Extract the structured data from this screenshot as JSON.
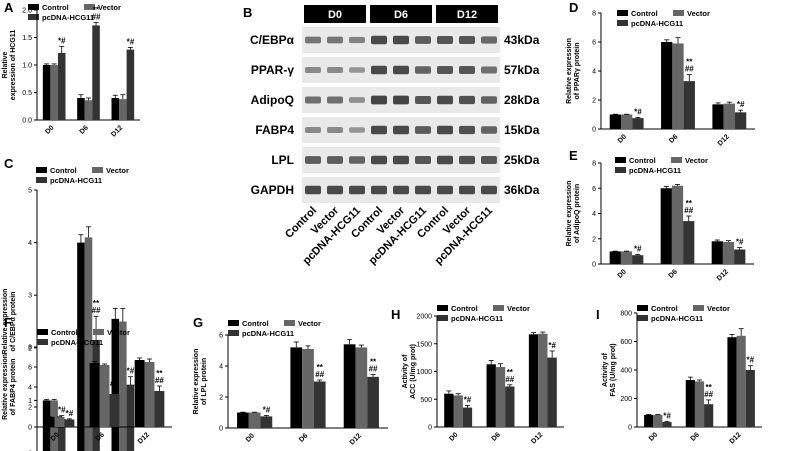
{
  "colors": {
    "control": "#000000",
    "vector": "#666666",
    "pcdna": "#333333",
    "axis": "#000000",
    "blot_bg": "#e9e9e9",
    "band": "#333333",
    "header": "#000000"
  },
  "series_names": [
    "Control",
    "Vector",
    "pcDNA-HCG11"
  ],
  "western_blot": {
    "letter": "B",
    "timepoints": [
      "D0",
      "D6",
      "D12"
    ],
    "proteins": [
      {
        "name": "C/EBPα",
        "size": "43kDa",
        "intensity": [
          0.55,
          0.55,
          0.45,
          0.9,
          0.9,
          0.75,
          0.8,
          0.8,
          0.65
        ]
      },
      {
        "name": "PPAR-γ",
        "size": "57kDa",
        "intensity": [
          0.4,
          0.4,
          0.3,
          0.9,
          0.9,
          0.7,
          0.8,
          0.8,
          0.6
        ]
      },
      {
        "name": "AdipoQ",
        "size": "28kDa",
        "intensity": [
          0.6,
          0.6,
          0.35,
          0.95,
          0.95,
          0.8,
          0.9,
          0.85,
          0.7
        ]
      },
      {
        "name": "FABP4",
        "size": "15kDa",
        "intensity": [
          0.4,
          0.4,
          0.3,
          0.9,
          0.9,
          0.75,
          0.9,
          0.85,
          0.7
        ]
      },
      {
        "name": "LPL",
        "size": "25kDa",
        "intensity": [
          0.75,
          0.75,
          0.7,
          0.9,
          0.9,
          0.8,
          0.9,
          0.85,
          0.8
        ]
      },
      {
        "name": "GAPDH",
        "size": "36kDa",
        "intensity": [
          0.9,
          0.9,
          0.9,
          0.9,
          0.9,
          0.9,
          0.9,
          0.9,
          0.9
        ]
      }
    ],
    "lane_labels": [
      "Control",
      "Vector",
      "pcDNA-HCG11",
      "Control",
      "Vector",
      "pcDNA-HCG11",
      "Control",
      "Vector",
      "pcDNA-HCG11"
    ]
  },
  "chart_data": [
    {
      "id": "A",
      "type": "bar",
      "letter": "A",
      "ylabel": "Relative expression of HCG11",
      "categories": [
        "D0",
        "D6",
        "D12"
      ],
      "ylim": [
        0,
        2.0
      ],
      "yticks": [
        0.0,
        0.5,
        1.0,
        1.5,
        2.0
      ],
      "tick_decimals": 1,
      "legend_cols": 2,
      "legend_placement": "top",
      "series": [
        {
          "name": "Control",
          "values": [
            1.0,
            0.4,
            0.4
          ],
          "errors": [
            0.02,
            0.06,
            0.05
          ]
        },
        {
          "name": "Vector",
          "values": [
            1.0,
            0.36,
            0.38
          ],
          "errors": [
            0.02,
            0.04,
            0.08
          ]
        },
        {
          "name": "pcDNA-HCG11",
          "values": [
            1.22,
            1.72,
            1.28
          ],
          "errors": [
            0.12,
            0.05,
            0.04
          ]
        }
      ],
      "annotations": [
        {
          "series": 2,
          "category": 0,
          "text": [
            "*#"
          ]
        },
        {
          "series": 2,
          "category": 1,
          "text": [
            "**",
            "##"
          ]
        },
        {
          "series": 2,
          "category": 2,
          "text": [
            "*#"
          ]
        }
      ]
    },
    {
      "id": "C",
      "type": "bar",
      "letter": "C",
      "ylabel": "Relative expression of C/EBPα protein",
      "categories": [
        "D0",
        "D6",
        "D12"
      ],
      "ylim": [
        0,
        5
      ],
      "yticks": [
        0,
        1,
        2,
        3,
        4,
        5
      ],
      "tick_decimals": 0,
      "legend_cols": 2,
      "legend_placement": "top",
      "series": [
        {
          "name": "Control",
          "values": [
            1.0,
            4.0,
            2.55
          ],
          "errors": [
            0.02,
            0.15,
            0.2
          ]
        },
        {
          "name": "Vector",
          "values": [
            1.0,
            4.1,
            2.5
          ],
          "errors": [
            0.02,
            0.2,
            0.25
          ]
        },
        {
          "name": "pcDNA-HCG11",
          "values": [
            0.65,
            2.15,
            1.3
          ],
          "errors": [
            0.06,
            0.45,
            0.15
          ]
        }
      ],
      "annotations": [
        {
          "series": 2,
          "category": 0,
          "text": [
            "*#"
          ]
        },
        {
          "series": 2,
          "category": 1,
          "text": [
            "**",
            "##"
          ]
        },
        {
          "series": 2,
          "category": 2,
          "text": [
            "*#"
          ]
        }
      ]
    },
    {
      "id": "D",
      "type": "bar",
      "letter": "D",
      "ylabel": "Relative expression of PPARγ protein",
      "categories": [
        "D0",
        "D6",
        "D12"
      ],
      "ylim": [
        0,
        8
      ],
      "yticks": [
        0,
        2,
        4,
        6,
        8
      ],
      "tick_decimals": 0,
      "legend_cols": 2,
      "legend_placement": "top",
      "series": [
        {
          "name": "Control",
          "values": [
            1.0,
            6.0,
            1.7
          ],
          "errors": [
            0.02,
            0.15,
            0.1
          ]
        },
        {
          "name": "Vector",
          "values": [
            1.0,
            5.9,
            1.75
          ],
          "errors": [
            0.02,
            0.4,
            0.1
          ]
        },
        {
          "name": "pcDNA-HCG11",
          "values": [
            0.75,
            3.3,
            1.15
          ],
          "errors": [
            0.05,
            0.45,
            0.15
          ]
        }
      ],
      "annotations": [
        {
          "series": 2,
          "category": 0,
          "text": [
            "*#"
          ]
        },
        {
          "series": 2,
          "category": 1,
          "text": [
            "**",
            "##"
          ]
        },
        {
          "series": 2,
          "category": 2,
          "text": [
            "*#"
          ]
        }
      ]
    },
    {
      "id": "E",
      "type": "bar",
      "letter": "E",
      "ylabel": "Relative expression of AdipoQ protein",
      "categories": [
        "D0",
        "D6",
        "D12"
      ],
      "ylim": [
        0,
        8
      ],
      "yticks": [
        0,
        2,
        4,
        6,
        8
      ],
      "tick_decimals": 0,
      "legend_cols": 2,
      "legend_placement": "top",
      "series": [
        {
          "name": "Control",
          "values": [
            1.0,
            6.0,
            1.8
          ],
          "errors": [
            0.02,
            0.15,
            0.1
          ]
        },
        {
          "name": "Vector",
          "values": [
            1.0,
            6.2,
            1.75
          ],
          "errors": [
            0.02,
            0.1,
            0.1
          ]
        },
        {
          "name": "pcDNA-HCG11",
          "values": [
            0.7,
            3.4,
            1.15
          ],
          "errors": [
            0.05,
            0.4,
            0.15
          ]
        }
      ],
      "annotations": [
        {
          "series": 2,
          "category": 0,
          "text": [
            "*#"
          ]
        },
        {
          "series": 2,
          "category": 1,
          "text": [
            "**",
            "##"
          ]
        },
        {
          "series": 2,
          "category": 2,
          "text": [
            "*#"
          ]
        }
      ]
    },
    {
      "id": "F",
      "type": "bar",
      "letter": "F",
      "ylabel": "Relative expression of FABP4 protein",
      "categories": [
        "D0",
        "D6",
        "D12"
      ],
      "ylim": [
        0,
        8
      ],
      "yticks": [
        0,
        2,
        4,
        6,
        8
      ],
      "tick_decimals": 0,
      "legend_cols": 2,
      "legend_placement": "top",
      "series": [
        {
          "name": "Control",
          "values": [
            1.0,
            6.4,
            6.7
          ],
          "errors": [
            0.02,
            0.15,
            0.2
          ]
        },
        {
          "name": "Vector",
          "values": [
            1.0,
            6.2,
            6.5
          ],
          "errors": [
            0.02,
            0.1,
            0.3
          ]
        },
        {
          "name": "pcDNA-HCG11",
          "values": [
            0.75,
            3.3,
            3.6
          ],
          "errors": [
            0.06,
            0.5,
            0.5
          ]
        }
      ],
      "annotations": [
        {
          "series": 2,
          "category": 0,
          "text": [
            "*#"
          ]
        },
        {
          "series": 2,
          "category": 1,
          "text": [
            "**",
            "##"
          ]
        },
        {
          "series": 2,
          "category": 2,
          "text": [
            "**",
            "##"
          ]
        }
      ]
    },
    {
      "id": "G",
      "type": "bar",
      "letter": "G",
      "ylabel": "Relative expression of LPL protein",
      "categories": [
        "D0",
        "D6",
        "D12"
      ],
      "ylim": [
        0,
        6
      ],
      "yticks": [
        0,
        2,
        4,
        6
      ],
      "tick_decimals": 0,
      "legend_cols": 2,
      "legend_placement": "top",
      "series": [
        {
          "name": "Control",
          "values": [
            1.0,
            5.2,
            5.4
          ],
          "errors": [
            0.02,
            0.35,
            0.3
          ]
        },
        {
          "name": "Vector",
          "values": [
            1.0,
            5.1,
            5.2
          ],
          "errors": [
            0.02,
            0.2,
            0.15
          ]
        },
        {
          "name": "pcDNA-HCG11",
          "values": [
            0.75,
            3.0,
            3.3
          ],
          "errors": [
            0.05,
            0.1,
            0.15
          ]
        }
      ],
      "annotations": [
        {
          "series": 2,
          "category": 0,
          "text": [
            "*#"
          ]
        },
        {
          "series": 2,
          "category": 1,
          "text": [
            "**",
            "##"
          ]
        },
        {
          "series": 2,
          "category": 2,
          "text": [
            "**",
            "##"
          ]
        }
      ]
    },
    {
      "id": "H",
      "type": "bar",
      "letter": "H",
      "ylabel": "Activity of ACC (U/mg prot)",
      "categories": [
        "D0",
        "D6",
        "D12"
      ],
      "ylim": [
        0,
        2000
      ],
      "yticks": [
        0,
        500,
        1000,
        1500,
        2000
      ],
      "tick_decimals": 0,
      "legend_cols": 2,
      "legend_placement": "top",
      "series": [
        {
          "name": "Control",
          "values": [
            600,
            1130,
            1670
          ],
          "errors": [
            50,
            70,
            30
          ]
        },
        {
          "name": "Vector",
          "values": [
            570,
            1080,
            1680
          ],
          "errors": [
            30,
            60,
            30
          ]
        },
        {
          "name": "pcDNA-HCG11",
          "values": [
            350,
            730,
            1250
          ],
          "errors": [
            40,
            30,
            120
          ]
        }
      ],
      "annotations": [
        {
          "series": 2,
          "category": 0,
          "text": [
            "*#"
          ]
        },
        {
          "series": 2,
          "category": 1,
          "text": [
            "**",
            "##"
          ]
        },
        {
          "series": 2,
          "category": 2,
          "text": [
            "*#"
          ]
        }
      ]
    },
    {
      "id": "I",
      "type": "bar",
      "letter": "I",
      "ylabel": "Activity of FAS (U/mg prot)",
      "categories": [
        "D0",
        "D6",
        "D12"
      ],
      "ylim": [
        0,
        800
      ],
      "yticks": [
        0,
        200,
        400,
        600,
        800
      ],
      "tick_decimals": 0,
      "legend_cols": 2,
      "legend_placement": "top",
      "series": [
        {
          "name": "Control",
          "values": [
            85,
            330,
            630
          ],
          "errors": [
            3,
            20,
            20
          ]
        },
        {
          "name": "Vector",
          "values": [
            85,
            320,
            640
          ],
          "errors": [
            3,
            10,
            50
          ]
        },
        {
          "name": "pcDNA-HCG11",
          "values": [
            35,
            160,
            400
          ],
          "errors": [
            5,
            30,
            30
          ]
        }
      ],
      "annotations": [
        {
          "series": 2,
          "category": 0,
          "text": [
            "*#"
          ]
        },
        {
          "series": 2,
          "category": 1,
          "text": [
            "**",
            "##"
          ]
        },
        {
          "series": 2,
          "category": 2,
          "text": [
            "*#"
          ]
        }
      ]
    }
  ]
}
